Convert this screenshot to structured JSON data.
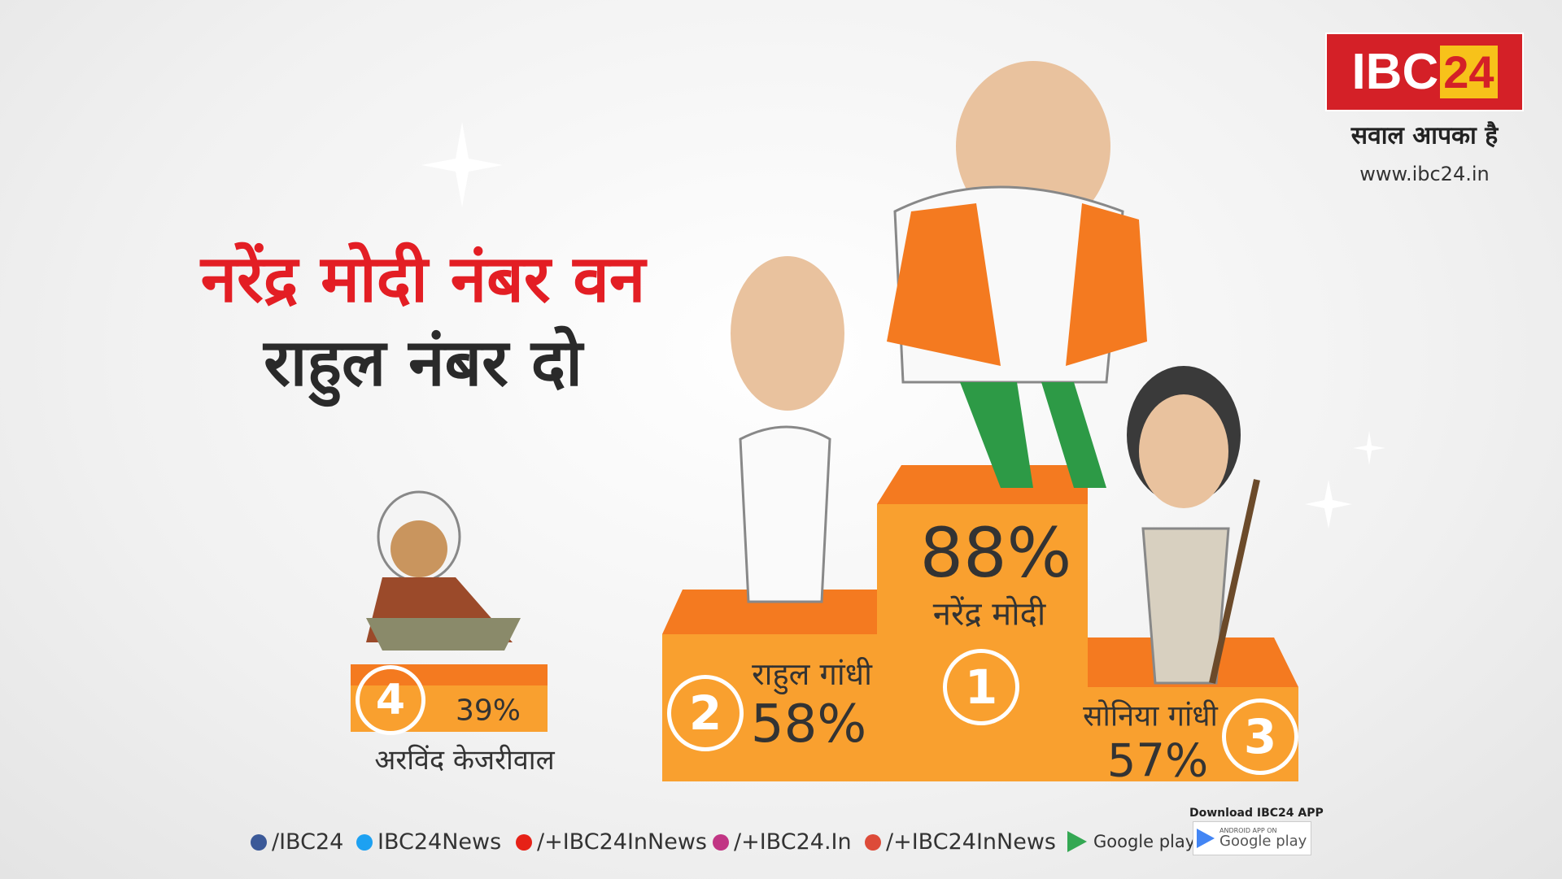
{
  "logo": {
    "brand": "IBC",
    "brand_number": "24",
    "tagline": "सवाल आपका है",
    "website": "www.ibc24.in"
  },
  "headline": {
    "line1": "नरेंद्र मोदी नंबर वन",
    "line2": "राहुल नंबर दो"
  },
  "podium": [
    {
      "rank": "1",
      "name": "नरेंद्र मोदी",
      "percent": "88%"
    },
    {
      "rank": "2",
      "name": "राहुल गांधी",
      "percent": "58%"
    },
    {
      "rank": "3",
      "name": "सोनिया गांधी",
      "percent": "57%"
    },
    {
      "rank": "4",
      "name": "अरविंद केजरीवाल",
      "percent": "39%"
    }
  ],
  "footer": {
    "social": [
      "/IBC24",
      "IBC24News",
      "/+IBC24InNews",
      "/+IBC24.In",
      "/+IBC24InNews"
    ],
    "google_play": "Google play",
    "download": {
      "title": "Download IBC24 APP",
      "subtitle": "ANDROID APP ON",
      "store": "Google play"
    }
  }
}
